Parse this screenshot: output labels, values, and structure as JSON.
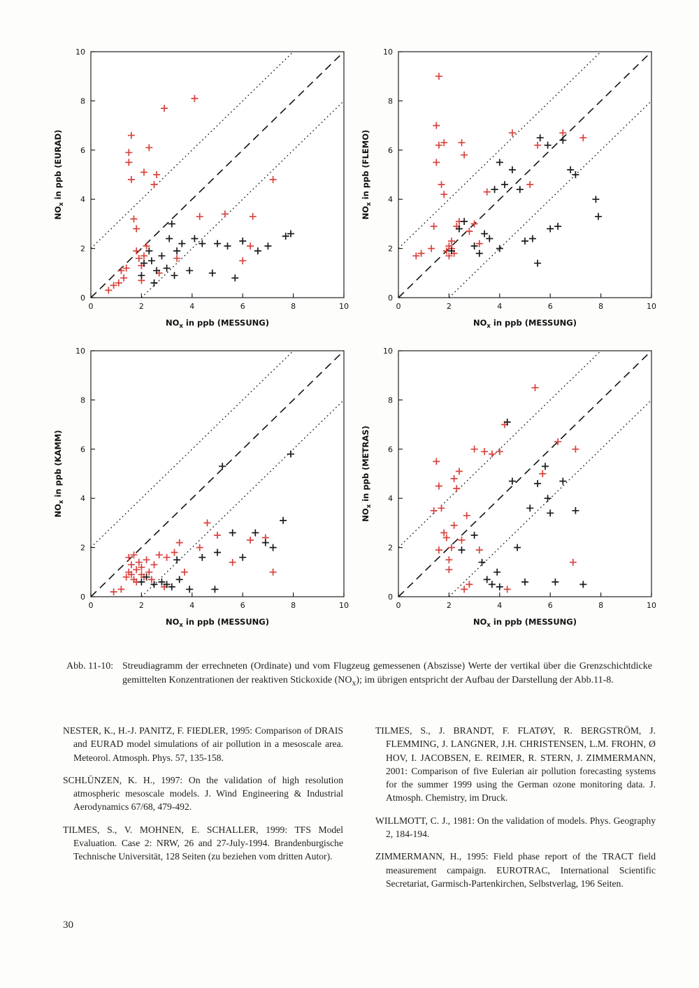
{
  "figure": {
    "caption_label": "Abb. 11-10:",
    "caption_pre": "Streudiagramm der errechneten (Ordinate) und vom Flugzeug gemessenen (Abszisse) Werte der vertikal über die Grenzschichtdicke gemittelten Konzentrationen der reaktiven Stickoxide (NO",
    "caption_sub": "x",
    "caption_post": "); im übrigen entspricht der Aufbau der Darstellung der Abb.11-8."
  },
  "references": {
    "left": [
      "NESTER, K., H.-J. PANITZ, F. FIEDLER, 1995: Comparison of DRAIS and EURAD model simulations of air pollution in a mesoscale area. Meteorol. Atmosph. Phys. 57, 135-158.",
      "SCHLÜNZEN, K. H., 1997: On the validation of high resolution atmospheric mesoscale models. J. Wind Engineering & Industrial Aerodynamics 67/68, 479-492.",
      "TILMES, S., V. MOHNEN, E. SCHALLER, 1999: TFS Model Evaluation. Case 2: NRW, 26 and 27-July-1994. Brandenburgische Technische Universität, 128 Seiten (zu beziehen vom dritten Autor)."
    ],
    "right": [
      "TILMES, S., J. BRANDT, F. FLATØY, R. BERGSTRÖM, J. FLEMMING, J. LANGNER, J.H. CHRISTENSEN, L.M. FROHN, Ø HOV, I. JACOBSEN, E. REIMER, R. STERN, J. ZIMMERMANN, 2001: Comparison of five Eulerian air pollution forecasting systems for the summer 1999 using the German ozone monitoring data. J. Atmosph. Chemistry, im Druck.",
      "WILLMOTT, C. J., 1981: On the validation of models. Phys. Geography 2, 184-194.",
      "ZIMMERMANN, H., 1995: Field phase report of the TRACT field measurement campaign. EUROTRAC, International Scientific Secretariat, Garmisch-Partenkirchen, Selbstverlag, 196 Seiten."
    ]
  },
  "page_number": "30",
  "chart_data": [
    {
      "type": "scatter",
      "xlabel": {
        "pre": "NO",
        "sub": "x",
        "post": " in ppb (MESSUNG)"
      },
      "ylabel": {
        "pre": "NO",
        "sub": "x",
        "post": " in ppb (EURAD)"
      },
      "xlim": [
        0,
        10
      ],
      "ylim": [
        0,
        10
      ],
      "xticks": [
        0,
        2,
        4,
        6,
        8,
        10
      ],
      "yticks": [
        0,
        2,
        4,
        6,
        8,
        10
      ],
      "diagonal_dashed": true,
      "dotted_offsets": [
        2,
        -2
      ],
      "marker": "+",
      "series": [
        {
          "name": "red-crosses",
          "color": "#d9423c",
          "points": [
            [
              0.7,
              0.3
            ],
            [
              0.9,
              0.5
            ],
            [
              1.1,
              0.6
            ],
            [
              1.2,
              1.1
            ],
            [
              1.3,
              0.8
            ],
            [
              1.4,
              1.2
            ],
            [
              1.5,
              5.9
            ],
            [
              1.5,
              5.5
            ],
            [
              1.6,
              6.6
            ],
            [
              1.6,
              4.8
            ],
            [
              1.7,
              3.2
            ],
            [
              1.8,
              2.8
            ],
            [
              1.9,
              1.6
            ],
            [
              2.0,
              1.3
            ],
            [
              2.0,
              0.7
            ],
            [
              2.1,
              5.1
            ],
            [
              2.2,
              2.1
            ],
            [
              2.3,
              6.1
            ],
            [
              2.5,
              4.6
            ],
            [
              2.6,
              5.0
            ],
            [
              2.7,
              1.0
            ],
            [
              2.9,
              7.7
            ],
            [
              3.4,
              1.6
            ],
            [
              4.1,
              8.1
            ],
            [
              4.3,
              3.3
            ],
            [
              5.3,
              3.4
            ],
            [
              6.0,
              1.5
            ],
            [
              6.4,
              3.3
            ],
            [
              7.2,
              4.8
            ],
            [
              6.3,
              2.1
            ],
            [
              1.8,
              1.9
            ],
            [
              2.1,
              1.7
            ]
          ]
        },
        {
          "name": "black-crosses",
          "color": "#1b1b1b",
          "points": [
            [
              2.0,
              0.9
            ],
            [
              2.1,
              1.4
            ],
            [
              2.3,
              1.9
            ],
            [
              2.4,
              1.5
            ],
            [
              2.6,
              1.1
            ],
            [
              2.8,
              1.7
            ],
            [
              3.0,
              1.2
            ],
            [
              3.1,
              2.4
            ],
            [
              3.2,
              3.0
            ],
            [
              3.4,
              1.9
            ],
            [
              3.6,
              2.2
            ],
            [
              3.9,
              1.1
            ],
            [
              4.1,
              2.4
            ],
            [
              4.4,
              2.2
            ],
            [
              4.8,
              1.0
            ],
            [
              5.0,
              2.2
            ],
            [
              5.4,
              2.1
            ],
            [
              5.7,
              0.8
            ],
            [
              6.0,
              2.3
            ],
            [
              6.6,
              1.9
            ],
            [
              7.0,
              2.1
            ],
            [
              7.7,
              2.5
            ],
            [
              7.9,
              2.6
            ],
            [
              3.3,
              0.9
            ],
            [
              2.5,
              0.6
            ]
          ]
        }
      ]
    },
    {
      "type": "scatter",
      "xlabel": {
        "pre": "NO",
        "sub": "x",
        "post": " in ppb (MESSUNG)"
      },
      "ylabel": {
        "pre": "NO",
        "sub": "x",
        "post": " in ppb (FLEMO)"
      },
      "xlim": [
        0,
        10
      ],
      "ylim": [
        0,
        10
      ],
      "xticks": [
        0,
        2,
        4,
        6,
        8,
        10
      ],
      "yticks": [
        0,
        2,
        4,
        6,
        8,
        10
      ],
      "diagonal_dashed": true,
      "dotted_offsets": [
        2,
        -2
      ],
      "marker": "+",
      "series": [
        {
          "name": "red-crosses",
          "color": "#d9423c",
          "points": [
            [
              0.7,
              1.7
            ],
            [
              0.9,
              1.8
            ],
            [
              1.3,
              2.0
            ],
            [
              1.4,
              2.9
            ],
            [
              1.5,
              5.5
            ],
            [
              1.5,
              7.0
            ],
            [
              1.6,
              9.0
            ],
            [
              1.6,
              6.2
            ],
            [
              1.7,
              4.6
            ],
            [
              1.8,
              6.3
            ],
            [
              1.8,
              4.2
            ],
            [
              1.9,
              1.9
            ],
            [
              2.0,
              2.1
            ],
            [
              2.0,
              1.7
            ],
            [
              2.1,
              2.3
            ],
            [
              2.2,
              1.8
            ],
            [
              2.3,
              2.9
            ],
            [
              2.4,
              3.1
            ],
            [
              2.5,
              6.3
            ],
            [
              2.6,
              5.8
            ],
            [
              2.8,
              2.7
            ],
            [
              3.0,
              3.0
            ],
            [
              3.2,
              2.2
            ],
            [
              3.5,
              4.3
            ],
            [
              4.5,
              6.7
            ],
            [
              5.2,
              4.6
            ],
            [
              5.5,
              6.2
            ],
            [
              6.5,
              6.7
            ],
            [
              7.3,
              6.5
            ],
            [
              2.1,
              2.0
            ]
          ]
        },
        {
          "name": "black-crosses",
          "color": "#1b1b1b",
          "points": [
            [
              2.1,
              1.9
            ],
            [
              2.4,
              2.8
            ],
            [
              2.6,
              3.1
            ],
            [
              3.0,
              2.1
            ],
            [
              3.2,
              1.8
            ],
            [
              3.4,
              2.6
            ],
            [
              3.8,
              4.4
            ],
            [
              4.0,
              5.5
            ],
            [
              4.2,
              4.6
            ],
            [
              4.5,
              5.2
            ],
            [
              4.8,
              4.4
            ],
            [
              5.0,
              2.3
            ],
            [
              5.3,
              2.4
            ],
            [
              5.5,
              1.4
            ],
            [
              5.6,
              6.5
            ],
            [
              5.9,
              6.2
            ],
            [
              6.0,
              2.8
            ],
            [
              6.3,
              2.9
            ],
            [
              6.5,
              6.4
            ],
            [
              6.8,
              5.2
            ],
            [
              7.0,
              5.0
            ],
            [
              7.8,
              4.0
            ],
            [
              7.9,
              3.3
            ],
            [
              4.0,
              2.0
            ],
            [
              3.6,
              2.4
            ]
          ]
        }
      ]
    },
    {
      "type": "scatter",
      "xlabel": {
        "pre": "NO",
        "sub": "x",
        "post": " in ppb (MESSUNG)"
      },
      "ylabel": {
        "pre": "NO",
        "sub": "x",
        "post": " in ppb (KAMM)"
      },
      "xlim": [
        0,
        10
      ],
      "ylim": [
        0,
        10
      ],
      "xticks": [
        0,
        2,
        4,
        6,
        8,
        10
      ],
      "yticks": [
        0,
        2,
        4,
        6,
        8,
        10
      ],
      "diagonal_dashed": true,
      "dotted_offsets": [
        2,
        -2
      ],
      "marker": "+",
      "series": [
        {
          "name": "red-crosses",
          "color": "#d9423c",
          "points": [
            [
              0.9,
              0.2
            ],
            [
              1.2,
              0.3
            ],
            [
              1.4,
              0.8
            ],
            [
              1.5,
              1.0
            ],
            [
              1.5,
              1.6
            ],
            [
              1.6,
              0.9
            ],
            [
              1.6,
              1.3
            ],
            [
              1.7,
              0.7
            ],
            [
              1.7,
              1.7
            ],
            [
              1.8,
              1.1
            ],
            [
              1.8,
              0.6
            ],
            [
              1.9,
              1.4
            ],
            [
              2.0,
              0.9
            ],
            [
              2.0,
              1.2
            ],
            [
              2.1,
              0.8
            ],
            [
              2.2,
              1.5
            ],
            [
              2.3,
              1.0
            ],
            [
              2.4,
              0.7
            ],
            [
              2.5,
              1.3
            ],
            [
              2.7,
              1.7
            ],
            [
              3.0,
              1.6
            ],
            [
              3.3,
              1.8
            ],
            [
              3.5,
              2.2
            ],
            [
              3.7,
              1.0
            ],
            [
              4.3,
              2.0
            ],
            [
              4.6,
              3.0
            ],
            [
              5.0,
              2.5
            ],
            [
              5.6,
              1.4
            ],
            [
              6.3,
              2.3
            ],
            [
              6.9,
              2.4
            ],
            [
              7.2,
              1.0
            ],
            [
              2.9,
              0.4
            ]
          ]
        },
        {
          "name": "black-crosses",
          "color": "#1b1b1b",
          "points": [
            [
              2.0,
              0.6
            ],
            [
              2.2,
              0.8
            ],
            [
              2.5,
              0.5
            ],
            [
              2.8,
              0.6
            ],
            [
              3.0,
              0.5
            ],
            [
              3.2,
              0.4
            ],
            [
              3.5,
              0.7
            ],
            [
              3.9,
              0.3
            ],
            [
              4.4,
              1.6
            ],
            [
              4.9,
              0.3
            ],
            [
              5.0,
              1.8
            ],
            [
              5.2,
              5.3
            ],
            [
              5.6,
              2.6
            ],
            [
              6.0,
              1.6
            ],
            [
              6.5,
              2.6
            ],
            [
              6.9,
              2.2
            ],
            [
              7.2,
              2.0
            ],
            [
              7.6,
              3.1
            ],
            [
              7.9,
              5.8
            ],
            [
              3.4,
              1.5
            ]
          ]
        }
      ]
    },
    {
      "type": "scatter",
      "xlabel": {
        "pre": "NO",
        "sub": "x",
        "post": " in ppb (MESSUNG)"
      },
      "ylabel": {
        "pre": "NO",
        "sub": "x",
        "post": " in ppb (METRAS)"
      },
      "xlim": [
        0,
        10
      ],
      "ylim": [
        0,
        10
      ],
      "xticks": [
        0,
        2,
        4,
        6,
        8,
        10
      ],
      "yticks": [
        0,
        2,
        4,
        6,
        8,
        10
      ],
      "diagonal_dashed": true,
      "dotted_offsets": [
        2,
        -2
      ],
      "marker": "+",
      "series": [
        {
          "name": "red-crosses",
          "color": "#d9423c",
          "points": [
            [
              1.4,
              3.5
            ],
            [
              1.5,
              5.5
            ],
            [
              1.6,
              4.5
            ],
            [
              1.7,
              3.6
            ],
            [
              1.8,
              2.6
            ],
            [
              1.9,
              2.4
            ],
            [
              2.0,
              1.5
            ],
            [
              2.0,
              1.1
            ],
            [
              2.1,
              2.0
            ],
            [
              2.2,
              4.8
            ],
            [
              2.3,
              4.4
            ],
            [
              2.4,
              5.1
            ],
            [
              2.5,
              2.3
            ],
            [
              2.6,
              0.3
            ],
            [
              2.8,
              0.5
            ],
            [
              3.0,
              6.0
            ],
            [
              3.2,
              1.9
            ],
            [
              3.4,
              5.9
            ],
            [
              3.7,
              5.8
            ],
            [
              4.0,
              5.9
            ],
            [
              4.2,
              7.0
            ],
            [
              4.3,
              0.3
            ],
            [
              5.4,
              8.5
            ],
            [
              5.7,
              5.0
            ],
            [
              6.3,
              6.3
            ],
            [
              7.0,
              6.0
            ],
            [
              6.9,
              1.4
            ],
            [
              2.2,
              2.9
            ],
            [
              1.6,
              1.9
            ],
            [
              2.7,
              3.3
            ]
          ]
        },
        {
          "name": "black-crosses",
          "color": "#1b1b1b",
          "points": [
            [
              2.5,
              1.9
            ],
            [
              3.0,
              2.5
            ],
            [
              3.3,
              1.4
            ],
            [
              3.5,
              0.7
            ],
            [
              3.7,
              0.5
            ],
            [
              4.0,
              0.4
            ],
            [
              4.3,
              7.1
            ],
            [
              4.5,
              4.7
            ],
            [
              5.0,
              0.6
            ],
            [
              5.2,
              3.6
            ],
            [
              5.5,
              4.6
            ],
            [
              5.8,
              5.3
            ],
            [
              6.0,
              3.4
            ],
            [
              6.2,
              0.6
            ],
            [
              6.5,
              4.7
            ],
            [
              7.0,
              3.5
            ],
            [
              7.3,
              0.5
            ],
            [
              4.7,
              2.0
            ],
            [
              5.9,
              4.0
            ],
            [
              3.9,
              1.0
            ]
          ]
        }
      ]
    }
  ]
}
